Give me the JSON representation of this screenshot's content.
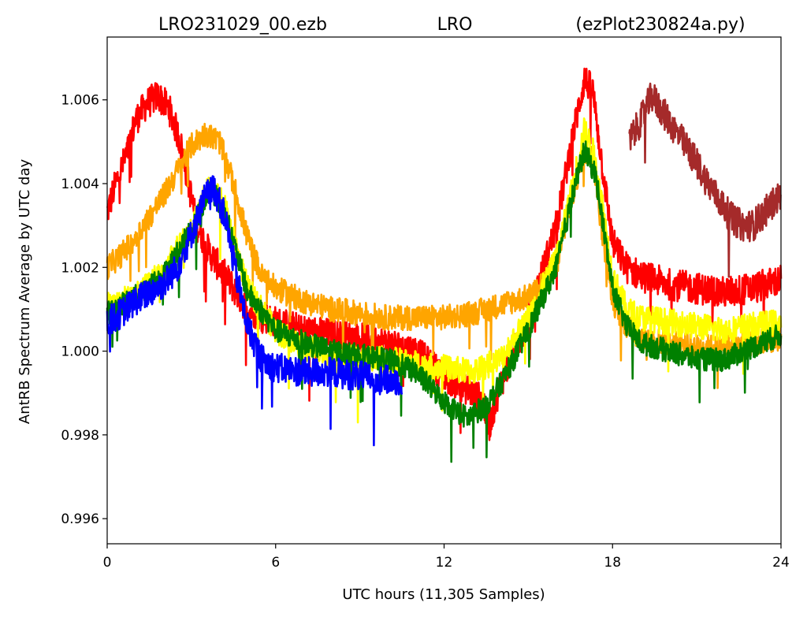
{
  "chart_data": {
    "type": "line",
    "title_left": "LRO231029_00.ezb",
    "title_center": "LRO",
    "title_right": "(ezPlot230824a.py)",
    "xlabel": "UTC hours  (11,305 Samples)",
    "ylabel": "AntRB Spectrum Average by UTC day",
    "xlim": [
      0,
      24
    ],
    "ylim": [
      0.9954,
      1.0075
    ],
    "x_ticks": [
      {
        "value": 0,
        "label": "0"
      },
      {
        "value": 6,
        "label": "6"
      },
      {
        "value": 12,
        "label": "12"
      },
      {
        "value": 18,
        "label": "18"
      },
      {
        "value": 24,
        "label": "24"
      }
    ],
    "y_ticks": [
      {
        "value": 0.996,
        "label": "0.996"
      },
      {
        "value": 0.998,
        "label": "0.998"
      },
      {
        "value": 1.0,
        "label": "1.000"
      },
      {
        "value": 1.002,
        "label": "1.002"
      },
      {
        "value": 1.004,
        "label": "1.004"
      },
      {
        "value": 1.006,
        "label": "1.006"
      }
    ],
    "grid": false,
    "series": [
      {
        "color": "#ff0000",
        "noise": 0.00038,
        "points": [
          [
            0.0,
            1.0033
          ],
          [
            0.3,
            1.004
          ],
          [
            0.7,
            1.0047
          ],
          [
            1.0,
            1.0055
          ],
          [
            1.4,
            1.0059
          ],
          [
            1.8,
            1.0061
          ],
          [
            2.2,
            1.0058
          ],
          [
            2.6,
            1.005
          ],
          [
            2.9,
            1.004
          ],
          [
            3.2,
            1.003
          ],
          [
            3.6,
            1.0024
          ],
          [
            4.0,
            1.002
          ],
          [
            4.5,
            1.0015
          ],
          [
            5.0,
            1.001
          ],
          [
            6.0,
            1.0007
          ],
          [
            7.0,
            1.0005
          ],
          [
            8.0,
            1.0004
          ],
          [
            9.0,
            1.0003
          ],
          [
            10.0,
            1.0002
          ],
          [
            11.0,
            1.0
          ],
          [
            12.0,
            0.9994
          ],
          [
            12.8,
            0.9991
          ],
          [
            13.4,
            0.9988
          ],
          [
            13.6,
            0.9982
          ],
          [
            14.0,
            0.9992
          ],
          [
            15.0,
            1.0008
          ],
          [
            16.0,
            1.003
          ],
          [
            16.6,
            1.0052
          ],
          [
            17.0,
            1.0065
          ],
          [
            17.3,
            1.0062
          ],
          [
            17.6,
            1.0046
          ],
          [
            18.0,
            1.0026
          ],
          [
            18.5,
            1.002
          ],
          [
            19.0,
            1.0018
          ],
          [
            20.0,
            1.0016
          ],
          [
            21.0,
            1.0015
          ],
          [
            22.0,
            1.0014
          ],
          [
            23.0,
            1.0015
          ],
          [
            24.0,
            1.0017
          ]
        ]
      },
      {
        "color": "#a52a2a",
        "noise": 0.00038,
        "points": [
          [
            18.6,
            1.005
          ],
          [
            19.0,
            1.0055
          ],
          [
            19.4,
            1.0061
          ],
          [
            19.8,
            1.0057
          ],
          [
            20.2,
            1.0053
          ],
          [
            20.6,
            1.0049
          ],
          [
            21.0,
            1.0045
          ],
          [
            21.4,
            1.004
          ],
          [
            21.8,
            1.0036
          ],
          [
            22.2,
            1.0032
          ],
          [
            22.6,
            1.003
          ],
          [
            23.0,
            1.003
          ],
          [
            23.4,
            1.0033
          ],
          [
            23.8,
            1.0036
          ],
          [
            24.0,
            1.0037
          ]
        ]
      },
      {
        "color": "#ffa500",
        "noise": 0.0003,
        "points": [
          [
            0.0,
            1.002
          ],
          [
            0.5,
            1.0023
          ],
          [
            1.0,
            1.0027
          ],
          [
            1.5,
            1.0032
          ],
          [
            2.0,
            1.0037
          ],
          [
            2.5,
            1.0043
          ],
          [
            3.0,
            1.0049
          ],
          [
            3.5,
            1.0052
          ],
          [
            4.0,
            1.005
          ],
          [
            4.5,
            1.004
          ],
          [
            5.0,
            1.0027
          ],
          [
            5.5,
            1.0018
          ],
          [
            6.0,
            1.0015
          ],
          [
            7.0,
            1.0012
          ],
          [
            8.0,
            1.001
          ],
          [
            9.0,
            1.0009
          ],
          [
            10.0,
            1.0008
          ],
          [
            11.0,
            1.0008
          ],
          [
            12.0,
            1.0008
          ],
          [
            13.0,
            1.0009
          ],
          [
            14.0,
            1.0011
          ],
          [
            15.0,
            1.0013
          ],
          [
            15.4,
            1.0015
          ],
          [
            16.0,
            1.002
          ],
          [
            16.5,
            1.0035
          ],
          [
            17.0,
            1.0048
          ],
          [
            17.3,
            1.0046
          ],
          [
            17.6,
            1.003
          ],
          [
            18.0,
            1.0012
          ],
          [
            18.5,
            1.0006
          ],
          [
            19.0,
            1.0003
          ],
          [
            20.0,
            1.0002
          ],
          [
            21.0,
            1.0001
          ],
          [
            22.0,
            1.0001
          ],
          [
            23.0,
            1.0002
          ],
          [
            24.0,
            1.0003
          ]
        ]
      },
      {
        "color": "#ffff00",
        "noise": 0.00032,
        "points": [
          [
            0.0,
            1.0011
          ],
          [
            1.0,
            1.0013
          ],
          [
            2.0,
            1.0019
          ],
          [
            3.0,
            1.003
          ],
          [
            3.7,
            1.004
          ],
          [
            4.2,
            1.0034
          ],
          [
            5.0,
            1.0015
          ],
          [
            6.0,
            1.0005
          ],
          [
            7.0,
            1.0001
          ],
          [
            8.0,
            0.9999
          ],
          [
            9.0,
            0.9998
          ],
          [
            10.0,
            0.9998
          ],
          [
            11.0,
            0.9997
          ],
          [
            12.0,
            0.9996
          ],
          [
            13.0,
            0.9995
          ],
          [
            14.0,
            0.9998
          ],
          [
            15.0,
            1.0008
          ],
          [
            16.0,
            1.0022
          ],
          [
            16.6,
            1.004
          ],
          [
            17.0,
            1.0053
          ],
          [
            17.4,
            1.0046
          ],
          [
            18.0,
            1.0018
          ],
          [
            18.5,
            1.001
          ],
          [
            19.0,
            1.0008
          ],
          [
            20.0,
            1.0007
          ],
          [
            21.0,
            1.0006
          ],
          [
            22.0,
            1.0005
          ],
          [
            23.0,
            1.0006
          ],
          [
            24.0,
            1.0007
          ]
        ]
      },
      {
        "color": "#008000",
        "noise": 0.00028,
        "points": [
          [
            0.0,
            1.0009
          ],
          [
            1.0,
            1.0013
          ],
          [
            2.0,
            1.0018
          ],
          [
            3.0,
            1.0029
          ],
          [
            3.7,
            1.0039
          ],
          [
            4.2,
            1.0033
          ],
          [
            5.0,
            1.0014
          ],
          [
            6.0,
            1.0005
          ],
          [
            7.0,
            1.0002
          ],
          [
            8.0,
            1.0
          ],
          [
            9.0,
            0.9999
          ],
          [
            10.0,
            0.9998
          ],
          [
            11.0,
            0.9995
          ],
          [
            12.0,
            0.9988
          ],
          [
            12.8,
            0.9984
          ],
          [
            13.5,
            0.9987
          ],
          [
            14.0,
            0.9992
          ],
          [
            15.0,
            1.0005
          ],
          [
            16.0,
            1.002
          ],
          [
            16.6,
            1.0038
          ],
          [
            17.0,
            1.0048
          ],
          [
            17.4,
            1.0042
          ],
          [
            18.0,
            1.0015
          ],
          [
            18.5,
            1.0006
          ],
          [
            19.0,
            1.0002
          ],
          [
            20.0,
            1.0
          ],
          [
            21.0,
            0.9998
          ],
          [
            22.0,
            0.9998
          ],
          [
            23.0,
            1.0001
          ],
          [
            24.0,
            1.0004
          ]
        ]
      },
      {
        "color": "#0000ff",
        "noise": 0.00036,
        "points": [
          [
            0.0,
            1.0007
          ],
          [
            0.5,
            1.0009
          ],
          [
            1.0,
            1.0012
          ],
          [
            1.5,
            1.0014
          ],
          [
            2.0,
            1.0016
          ],
          [
            2.5,
            1.002
          ],
          [
            3.0,
            1.0028
          ],
          [
            3.5,
            1.0037
          ],
          [
            3.8,
            1.0039
          ],
          [
            4.2,
            1.0032
          ],
          [
            4.6,
            1.0018
          ],
          [
            5.0,
            1.0006
          ],
          [
            5.5,
            0.9998
          ],
          [
            6.0,
            0.9996
          ],
          [
            7.0,
            0.9995
          ],
          [
            8.0,
            0.9995
          ],
          [
            9.0,
            0.9994
          ],
          [
            10.0,
            0.9993
          ],
          [
            10.5,
            0.9993
          ]
        ]
      }
    ]
  }
}
